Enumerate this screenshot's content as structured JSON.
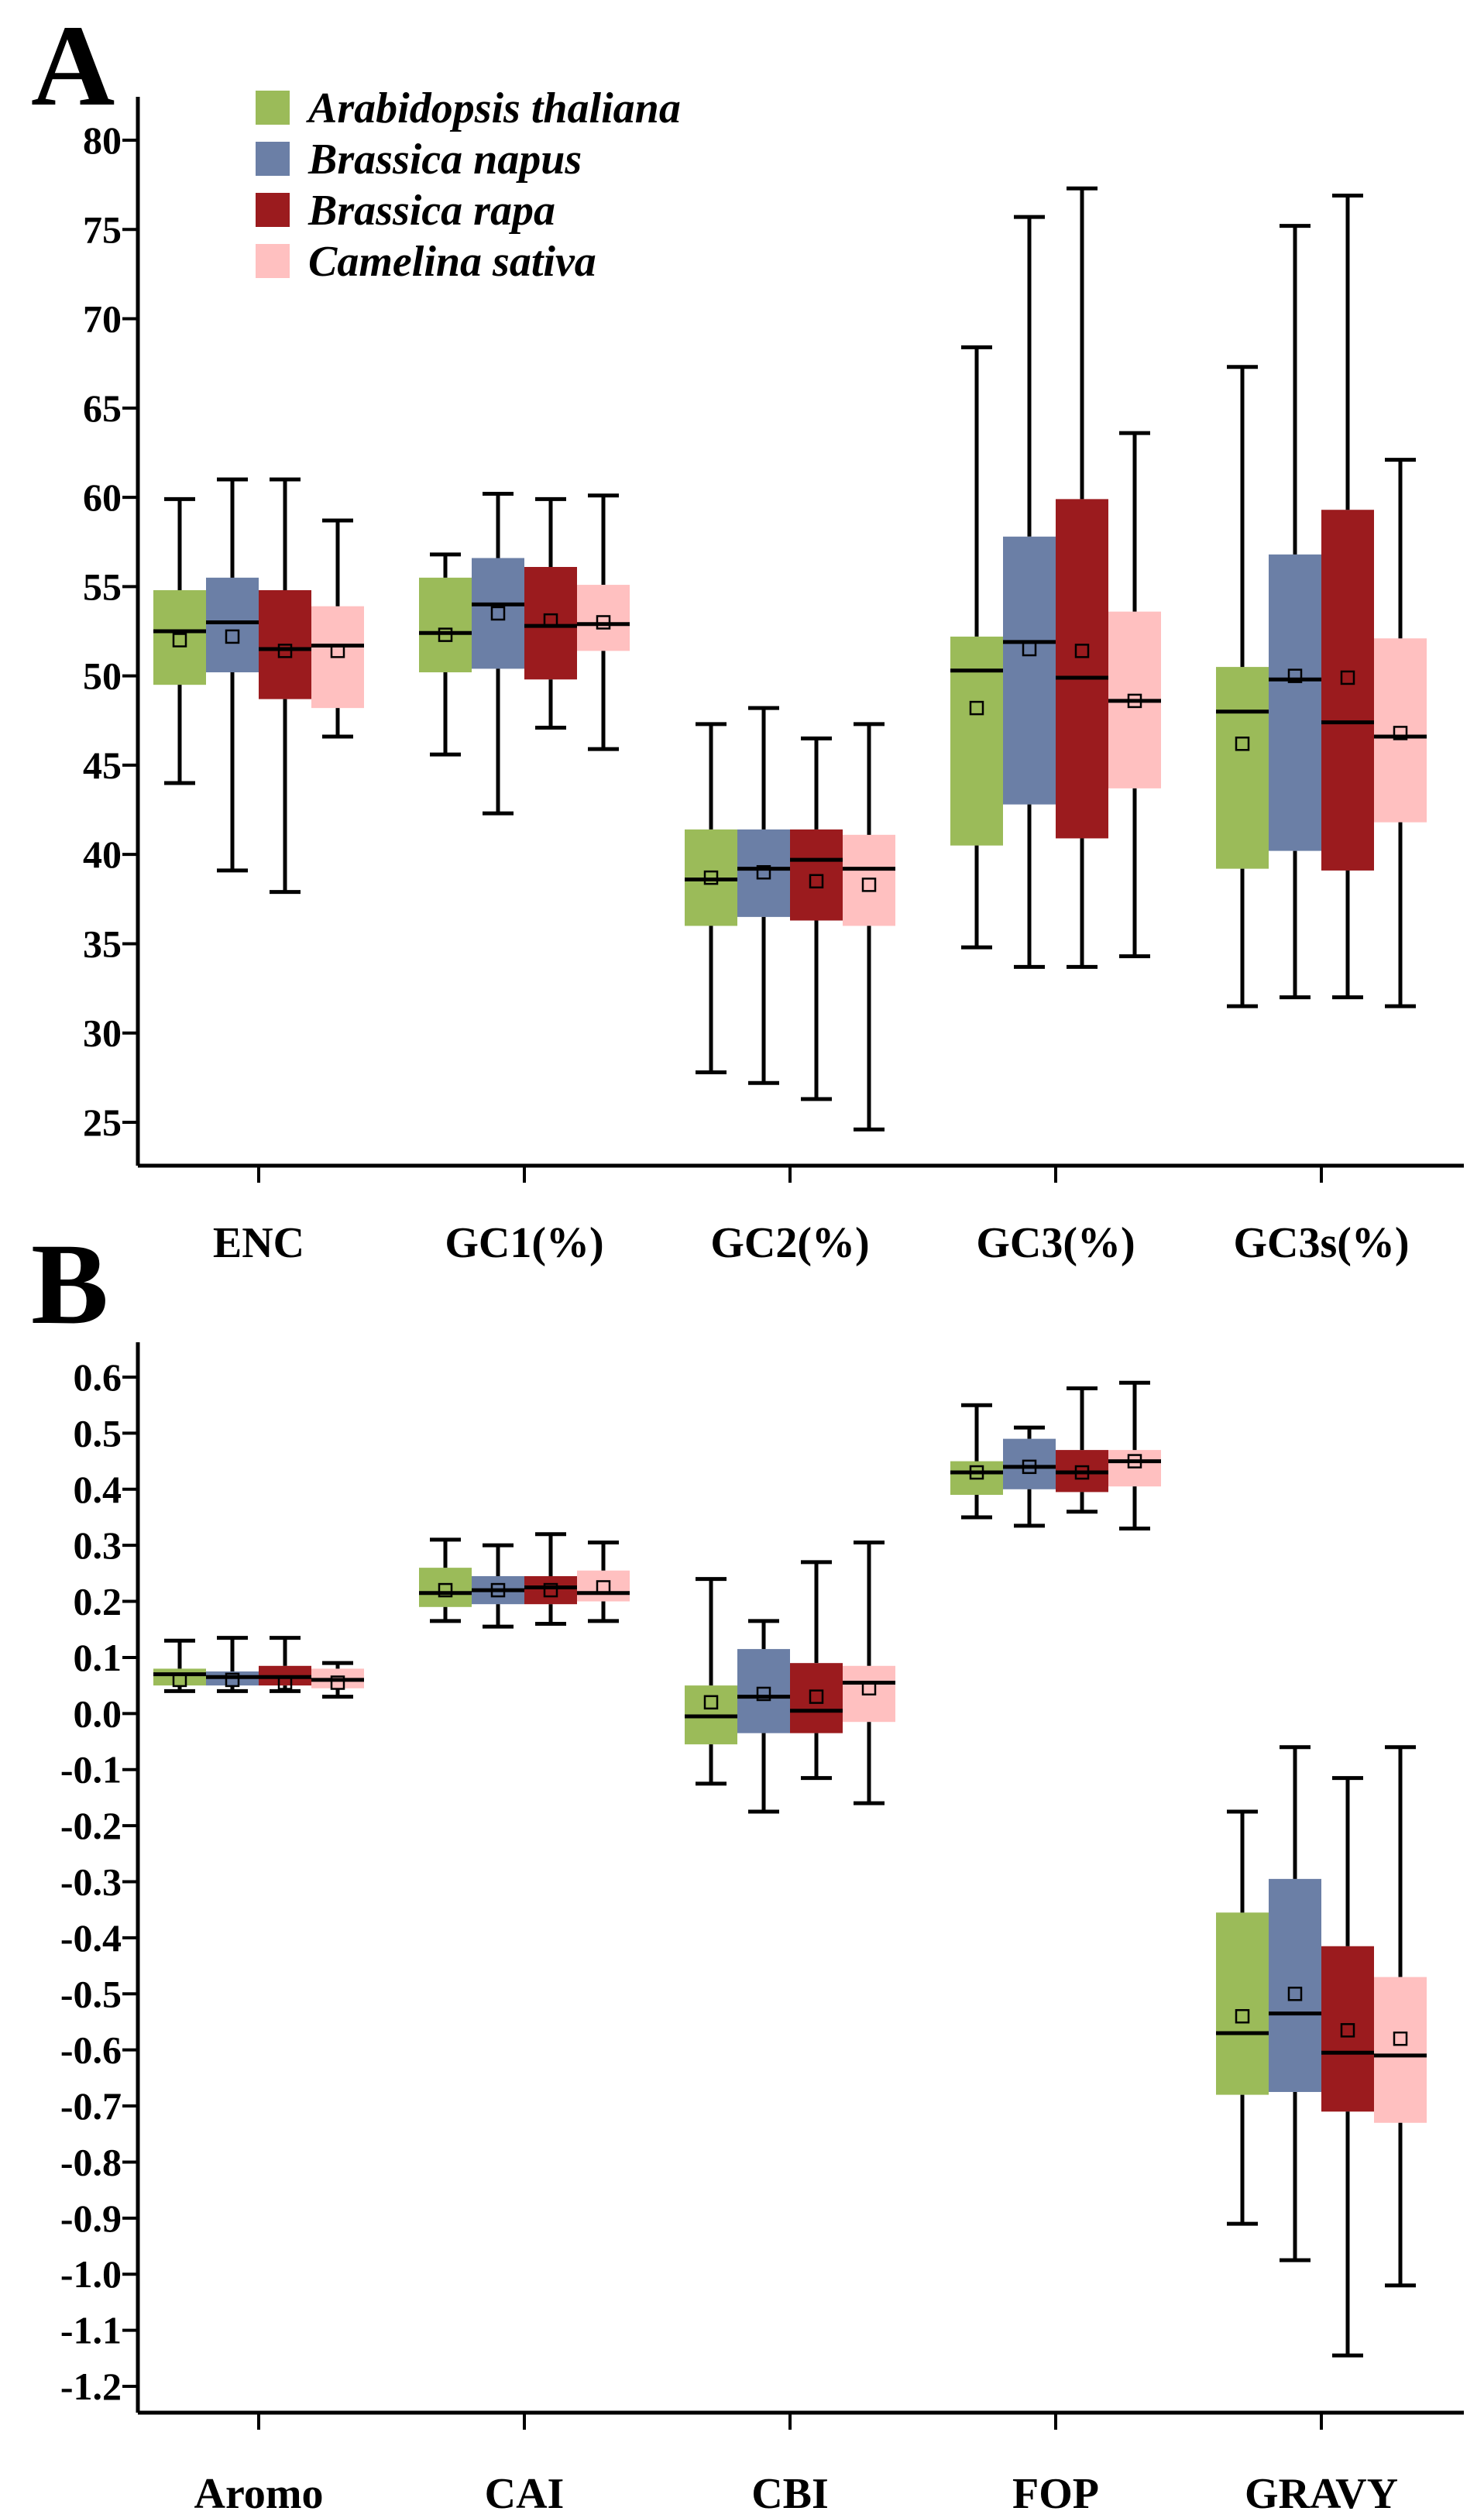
{
  "panels": [
    {
      "letter": "A"
    },
    {
      "letter": "B"
    }
  ],
  "legend": [
    {
      "name": "Arabidopsis thaliana",
      "color": "#9bbb59"
    },
    {
      "name": "Brassica napus",
      "color": "#6b7fa6"
    },
    {
      "name": "Brassica rapa",
      "color": "#9b1b1e"
    },
    {
      "name": "Camelina sativa",
      "color": "#ffc0c0"
    }
  ],
  "chart_data": [
    {
      "type": "box",
      "panel": "A",
      "title": "",
      "xlabel": "",
      "ylabel": "",
      "ylim": [
        22,
        82
      ],
      "yticks": [
        25,
        30,
        35,
        40,
        45,
        50,
        55,
        60,
        65,
        70,
        75,
        80
      ],
      "ytick_labels": [
        "25",
        "30",
        "35",
        "40",
        "45",
        "50",
        "55",
        "60",
        "65",
        "70",
        "75",
        "80"
      ],
      "categories": [
        "ENC",
        "GC1(%)",
        "GC2(%)",
        "GC3(%)",
        "GC3s(%)"
      ],
      "series": [
        {
          "name": "Arabidopsis thaliana",
          "boxes": [
            {
              "min": 44.0,
              "q1": 49.5,
              "median": 52.5,
              "q3": 54.8,
              "max": 59.9,
              "mean": 52.0
            },
            {
              "min": 45.6,
              "q1": 50.2,
              "median": 52.4,
              "q3": 55.5,
              "max": 56.8,
              "mean": 52.3
            },
            {
              "min": 27.8,
              "q1": 36.0,
              "median": 38.6,
              "q3": 41.4,
              "max": 47.3,
              "mean": 38.7
            },
            {
              "min": 34.8,
              "q1": 40.5,
              "median": 50.3,
              "q3": 52.2,
              "max": 68.4,
              "mean": 48.2
            },
            {
              "min": 31.5,
              "q1": 39.2,
              "median": 48.0,
              "q3": 50.5,
              "max": 67.3,
              "mean": 46.2
            }
          ]
        },
        {
          "name": "Brassica napus",
          "boxes": [
            {
              "min": 39.1,
              "q1": 50.2,
              "median": 53.0,
              "q3": 55.5,
              "max": 61.0,
              "mean": 52.2
            },
            {
              "min": 42.3,
              "q1": 50.4,
              "median": 54.0,
              "q3": 56.6,
              "max": 60.2,
              "mean": 53.5
            },
            {
              "min": 27.2,
              "q1": 36.5,
              "median": 39.2,
              "q3": 41.4,
              "max": 48.2,
              "mean": 39.0
            },
            {
              "min": 33.7,
              "q1": 42.8,
              "median": 51.9,
              "q3": 57.8,
              "max": 75.7,
              "mean": 51.5
            },
            {
              "min": 32.0,
              "q1": 40.2,
              "median": 49.8,
              "q3": 56.8,
              "max": 75.2,
              "mean": 50.0
            }
          ]
        },
        {
          "name": "Brassica rapa",
          "boxes": [
            {
              "min": 37.9,
              "q1": 48.7,
              "median": 51.5,
              "q3": 54.8,
              "max": 61.0,
              "mean": 51.4
            },
            {
              "min": 47.1,
              "q1": 49.8,
              "median": 52.8,
              "q3": 56.1,
              "max": 59.9,
              "mean": 53.1
            },
            {
              "min": 26.3,
              "q1": 36.3,
              "median": 39.7,
              "q3": 41.4,
              "max": 46.5,
              "mean": 38.5
            },
            {
              "min": 33.7,
              "q1": 40.9,
              "median": 49.9,
              "q3": 59.9,
              "max": 77.3,
              "mean": 51.4
            },
            {
              "min": 32.0,
              "q1": 39.1,
              "median": 47.4,
              "q3": 59.3,
              "max": 76.9,
              "mean": 49.9
            }
          ]
        },
        {
          "name": "Camelina sativa",
          "boxes": [
            {
              "min": 46.6,
              "q1": 48.2,
              "median": 51.7,
              "q3": 53.9,
              "max": 58.7,
              "mean": 51.4
            },
            {
              "min": 45.9,
              "q1": 51.4,
              "median": 52.9,
              "q3": 55.1,
              "max": 60.1,
              "mean": 53.0
            },
            {
              "min": 24.6,
              "q1": 36.0,
              "median": 39.2,
              "q3": 41.1,
              "max": 47.3,
              "mean": 38.3
            },
            {
              "min": 34.3,
              "q1": 43.7,
              "median": 48.6,
              "q3": 53.6,
              "max": 63.6,
              "mean": 48.6
            },
            {
              "min": 31.5,
              "q1": 41.8,
              "median": 46.6,
              "q3": 52.1,
              "max": 62.1,
              "mean": 46.8
            }
          ]
        }
      ]
    },
    {
      "type": "box",
      "panel": "B",
      "title": "",
      "xlabel": "",
      "ylabel": "",
      "ylim": [
        -1.25,
        0.65
      ],
      "yticks": [
        0.6,
        0.5,
        0.4,
        0.3,
        0.2,
        0.1,
        0.0,
        -0.1,
        -0.2,
        -0.3,
        -0.4,
        -0.5,
        -0.6,
        -0.7,
        -0.8,
        -0.9,
        -1.0,
        -1.1,
        -1.2
      ],
      "ytick_labels": [
        "0.6",
        "0.5",
        "0.4",
        "0.3",
        "0.2",
        "0.1",
        "0.0",
        "-0.1",
        "-0.2",
        "-0.3",
        "-0.4",
        "-0.5",
        "-0.6",
        "-0.7",
        "-0.8",
        "-0.9",
        "-1.0",
        "-1.1",
        "-1.2"
      ],
      "categories": [
        "Aromo",
        "CAI",
        "CBI",
        "FOP",
        "GRAVY"
      ],
      "series": [
        {
          "name": "Arabidopsis thaliana",
          "boxes": [
            {
              "min": 0.04,
              "q1": 0.05,
              "median": 0.07,
              "q3": 0.08,
              "max": 0.13,
              "mean": 0.06
            },
            {
              "min": 0.165,
              "q1": 0.19,
              "median": 0.215,
              "q3": 0.26,
              "max": 0.31,
              "mean": 0.22
            },
            {
              "min": -0.125,
              "q1": -0.055,
              "median": -0.005,
              "q3": 0.05,
              "max": 0.24,
              "mean": 0.02
            },
            {
              "min": 0.35,
              "q1": 0.39,
              "median": 0.43,
              "q3": 0.45,
              "max": 0.55,
              "mean": 0.43
            },
            {
              "min": -0.91,
              "q1": -0.68,
              "median": -0.57,
              "q3": -0.355,
              "max": -0.175,
              "mean": -0.54
            }
          ]
        },
        {
          "name": "Brassica napus",
          "boxes": [
            {
              "min": 0.04,
              "q1": 0.05,
              "median": 0.065,
              "q3": 0.075,
              "max": 0.135,
              "mean": 0.06
            },
            {
              "min": 0.155,
              "q1": 0.195,
              "median": 0.22,
              "q3": 0.245,
              "max": 0.3,
              "mean": 0.22
            },
            {
              "min": -0.175,
              "q1": -0.035,
              "median": 0.03,
              "q3": 0.115,
              "max": 0.165,
              "mean": 0.035
            },
            {
              "min": 0.335,
              "q1": 0.4,
              "median": 0.44,
              "q3": 0.49,
              "max": 0.51,
              "mean": 0.44
            },
            {
              "min": -0.975,
              "q1": -0.675,
              "median": -0.535,
              "q3": -0.295,
              "max": -0.06,
              "mean": -0.5
            }
          ]
        },
        {
          "name": "Brassica rapa",
          "boxes": [
            {
              "min": 0.04,
              "q1": 0.05,
              "median": 0.065,
              "q3": 0.085,
              "max": 0.135,
              "mean": 0.055
            },
            {
              "min": 0.16,
              "q1": 0.195,
              "median": 0.225,
              "q3": 0.245,
              "max": 0.32,
              "mean": 0.22
            },
            {
              "min": -0.115,
              "q1": -0.035,
              "median": 0.005,
              "q3": 0.09,
              "max": 0.27,
              "mean": 0.03
            },
            {
              "min": 0.36,
              "q1": 0.395,
              "median": 0.43,
              "q3": 0.47,
              "max": 0.58,
              "mean": 0.43
            },
            {
              "min": -1.145,
              "q1": -0.71,
              "median": -0.605,
              "q3": -0.415,
              "max": -0.115,
              "mean": -0.565
            }
          ]
        },
        {
          "name": "Camelina sativa",
          "boxes": [
            {
              "min": 0.03,
              "q1": 0.045,
              "median": 0.06,
              "q3": 0.08,
              "max": 0.09,
              "mean": 0.055
            },
            {
              "min": 0.165,
              "q1": 0.2,
              "median": 0.215,
              "q3": 0.255,
              "max": 0.305,
              "mean": 0.225
            },
            {
              "min": -0.16,
              "q1": -0.015,
              "median": 0.055,
              "q3": 0.085,
              "max": 0.305,
              "mean": 0.045
            },
            {
              "min": 0.33,
              "q1": 0.405,
              "median": 0.45,
              "q3": 0.47,
              "max": 0.59,
              "mean": 0.45
            },
            {
              "min": -1.02,
              "q1": -0.73,
              "median": -0.61,
              "q3": -0.47,
              "max": -0.06,
              "mean": -0.58
            }
          ]
        }
      ]
    }
  ]
}
